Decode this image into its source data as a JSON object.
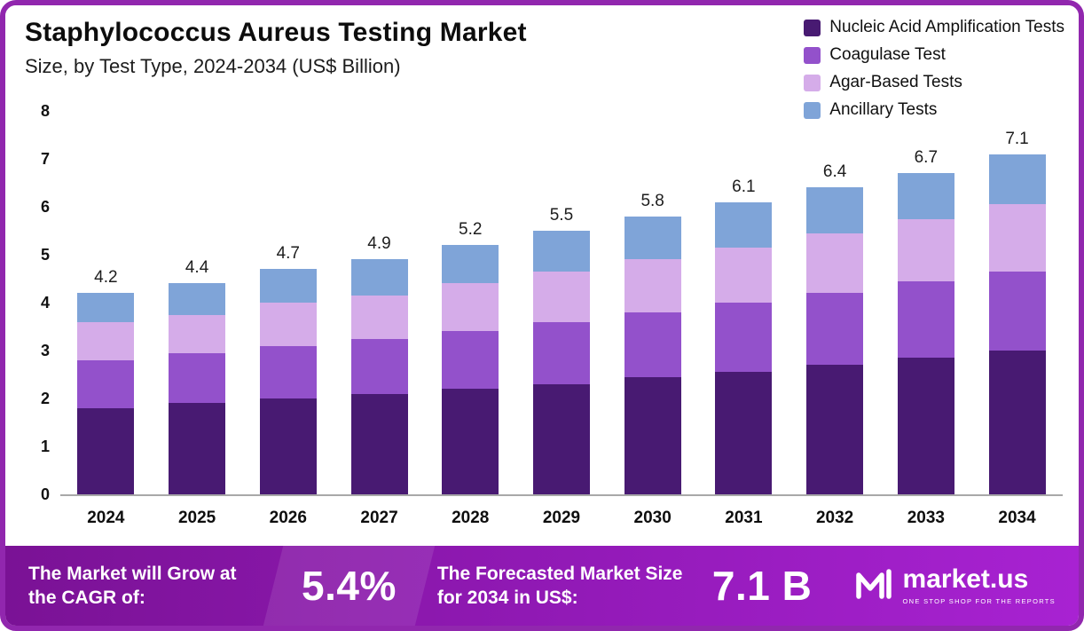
{
  "header": {
    "title": "Staphylococcus Aureus Testing Market",
    "subtitle": "Size, by Test Type, 2024-2034 (US$ Billion)"
  },
  "chart_data": {
    "type": "bar",
    "stacked": true,
    "title": "Staphylococcus Aureus Testing Market Size, by Test Type, 2024-2034 (US$ Billion)",
    "categories": [
      "2024",
      "2025",
      "2026",
      "2027",
      "2028",
      "2029",
      "2030",
      "2031",
      "2032",
      "2033",
      "2034"
    ],
    "series": [
      {
        "name": "Nucleic Acid Amplification Tests",
        "color": "#481a72",
        "values": [
          1.8,
          1.9,
          2.0,
          2.1,
          2.2,
          2.3,
          2.45,
          2.55,
          2.7,
          2.85,
          3.0
        ]
      },
      {
        "name": "Coagulase Test",
        "color": "#9351cb",
        "values": [
          1.0,
          1.05,
          1.1,
          1.15,
          1.2,
          1.3,
          1.35,
          1.45,
          1.5,
          1.6,
          1.65
        ]
      },
      {
        "name": "Agar-Based Tests",
        "color": "#d5ace9",
        "values": [
          0.8,
          0.8,
          0.9,
          0.9,
          1.0,
          1.05,
          1.1,
          1.15,
          1.25,
          1.3,
          1.4
        ]
      },
      {
        "name": "Ancillary Tests",
        "color": "#7fa4d8",
        "values": [
          0.6,
          0.65,
          0.7,
          0.75,
          0.8,
          0.85,
          0.9,
          0.95,
          0.95,
          0.95,
          1.05
        ]
      }
    ],
    "totals": [
      4.2,
      4.4,
      4.7,
      4.9,
      5.2,
      5.5,
      5.8,
      6.1,
      6.4,
      6.7,
      7.1
    ],
    "ylim": [
      0,
      8
    ],
    "yticks": [
      0,
      1,
      2,
      3,
      4,
      5,
      6,
      7,
      8
    ],
    "grid": false,
    "legend_position": "top-right"
  },
  "footer": {
    "cagr_label": "The Market will Grow at the CAGR of:",
    "cagr_value": "5.4%",
    "forecast_label": "The Forecasted Market Size for 2034 in US$:",
    "forecast_value": "7.1 B",
    "brand": "market.us",
    "brand_tagline": "ONE STOP SHOP FOR THE REPORTS"
  }
}
